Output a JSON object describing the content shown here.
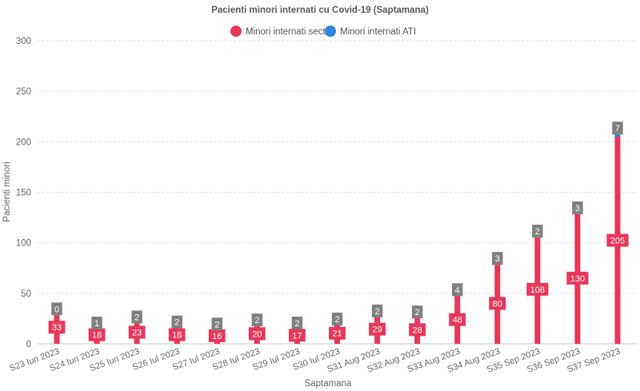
{
  "chart_data": {
    "type": "bar",
    "title": "Pacienti minori internati cu Covid-19 (Saptamana)",
    "xlabel": "Saptamana",
    "ylabel": "Pacienti minori",
    "ylim": [
      0,
      300
    ],
    "yticks": [
      0,
      50,
      100,
      150,
      200,
      250,
      300
    ],
    "grid": true,
    "legend_position": "top-center",
    "categories": [
      "S23 Iun 2023",
      "S24 Iun 2023",
      "S25 Iun 2023",
      "S26 Iul 2023",
      "S27 Iul 2023",
      "S28 Iul 2023",
      "S29 Iul 2023",
      "S30 Iul 2023",
      "S31 Aug 2023",
      "S32 Aug 2023",
      "S33 Aug 2023",
      "S34 Aug 2023",
      "S35 Sep 2023",
      "S36 Sep 2023",
      "S37 Sep 2023"
    ],
    "series": [
      {
        "name": "Minori internati sectii",
        "color": "#e8375a",
        "values": [
          33,
          18,
          23,
          18,
          16,
          20,
          17,
          21,
          29,
          28,
          48,
          80,
          108,
          130,
          205
        ]
      },
      {
        "name": "Minori internati ATI",
        "color": "#2e86de",
        "values": [
          0,
          1,
          2,
          2,
          2,
          2,
          2,
          2,
          2,
          2,
          4,
          3,
          2,
          3,
          7
        ]
      }
    ],
    "label_color_ati": "#808080"
  }
}
